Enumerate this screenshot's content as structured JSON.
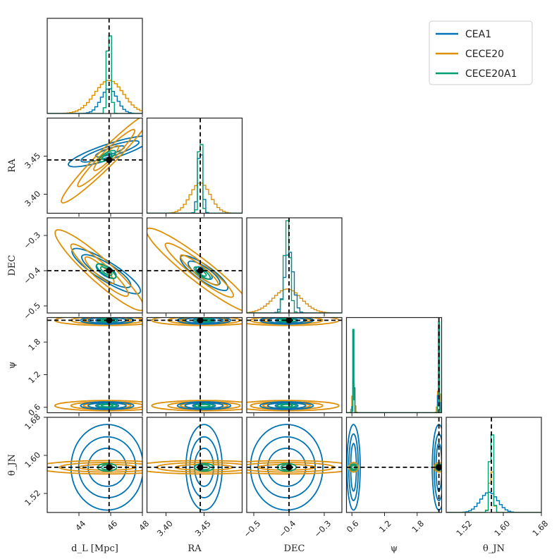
{
  "colors": {
    "CEA1": "#0173b2",
    "CECE20": "#de8f05",
    "CECE20A1": "#029e73",
    "truth": "#000000"
  },
  "legend": [
    "CEA1",
    "CECE20",
    "CECE20A1"
  ],
  "params": [
    {
      "key": "dL",
      "label": "d_L [Mpc]",
      "range": [
        42.0,
        48.0
      ],
      "truth": 45.9,
      "ticks": [
        44,
        46,
        48
      ],
      "tick_labels": [
        "44",
        "46",
        "48"
      ]
    },
    {
      "key": "RA",
      "label": "RA",
      "range": [
        3.375,
        3.5
      ],
      "truth": 3.445,
      "ticks": [
        3.4,
        3.45
      ],
      "tick_labels": [
        "3.40",
        "3.45"
      ]
    },
    {
      "key": "DEC",
      "label": "DEC",
      "range": [
        -0.52,
        -0.25
      ],
      "truth": -0.4,
      "ticks": [
        -0.5,
        -0.4,
        -0.3
      ],
      "tick_labels": [
        "−0.5",
        "−0.4",
        "−0.3"
      ]
    },
    {
      "key": "psi",
      "label": "ψ",
      "range": [
        0.5,
        2.25
      ],
      "truth": 2.2,
      "ticks": [
        0.6,
        1.2,
        1.8
      ],
      "tick_labels": [
        "0.6",
        "1.2",
        "1.8"
      ]
    },
    {
      "key": "thetaJN",
      "label": "θ_JN",
      "range": [
        1.48,
        1.68
      ],
      "truth": 1.575,
      "ticks": [
        1.52,
        1.6,
        1.68
      ],
      "tick_labels": [
        "1.52",
        "1.60",
        "1.68"
      ]
    }
  ],
  "chart_data": {
    "type": "scatter",
    "title": "",
    "series": [
      {
        "name": "CEA1",
        "center": {
          "dL": 45.9,
          "RA": 3.445,
          "DEC": -0.41,
          "psi_modes": [
            0.63,
            2.2
          ],
          "thetaJN": 1.575
        }
      },
      {
        "name": "CECE20",
        "center": {
          "dL": 45.9,
          "RA": 3.445,
          "DEC": -0.405,
          "psi_modes": [
            0.63,
            2.2
          ],
          "thetaJN": 1.575
        }
      },
      {
        "name": "CECE20A1",
        "center": {
          "dL": 45.9,
          "RA": 3.445,
          "DEC": -0.4,
          "psi_modes": [
            0.63,
            2.2
          ],
          "thetaJN": 1.575
        }
      }
    ],
    "truths": {
      "dL": 45.9,
      "RA": 3.445,
      "DEC": -0.4,
      "psi": 2.2,
      "thetaJN": 1.575
    },
    "legend_position": "top-right",
    "grid": false
  }
}
